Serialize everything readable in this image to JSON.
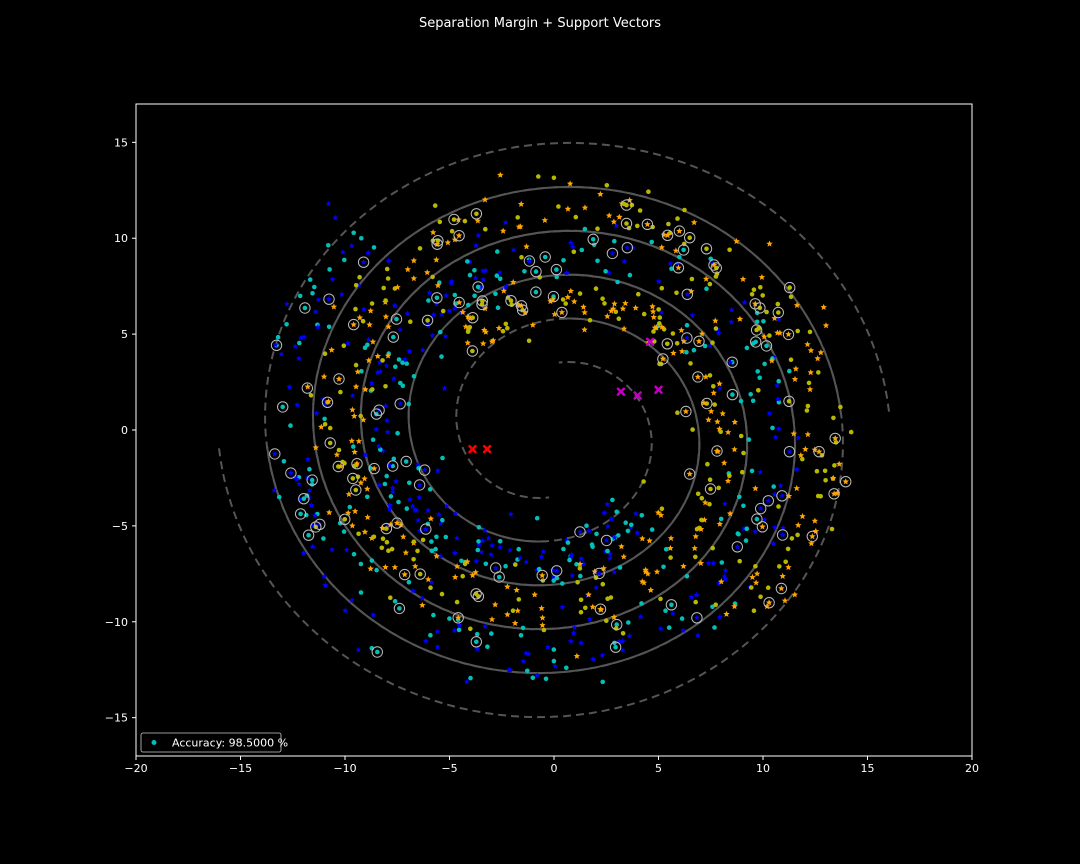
{
  "chart_data": {
    "type": "scatter",
    "title": "Separation Margin + Support Vectors",
    "xlabel": "",
    "ylabel": "",
    "xlim": [
      -20,
      20
    ],
    "ylim": [
      -17,
      17
    ],
    "xticks": [
      -20,
      -15,
      -10,
      -5,
      0,
      5,
      10,
      15,
      20
    ],
    "yticks": [
      -15,
      -10,
      -5,
      0,
      5,
      10,
      15
    ],
    "xtick_labels": [
      "−20",
      "−15",
      "−10",
      "−5",
      "0",
      "5",
      "10",
      "15",
      "20"
    ],
    "ytick_labels": [
      "−15",
      "−10",
      "−5",
      "0",
      "5",
      "10",
      "15"
    ],
    "grid": false,
    "background": "#000000",
    "legend": {
      "position": "lower-left",
      "entries": [
        {
          "label": "Accuracy: 98.5000 %",
          "marker": "dot",
          "color": "#00c0b8"
        }
      ]
    },
    "colors": {
      "class_a_train": "#0000ff",
      "class_a_test": "#00c0b8",
      "class_b_train": "#ffa500",
      "class_b_test": "#b8b800",
      "misclassified_a": "#ff0000",
      "misclassified_b": "#c000c0",
      "support_vector_ring": "#bbbbbb",
      "decision_boundary": "#555555",
      "margin_lines": "#555555"
    },
    "spiral_model": {
      "class_a": {
        "r0": 13.1,
        "angle_at_r0_deg": 145,
        "r1": 6.6,
        "angle_at_r1_deg": -65,
        "reverse_tail": 1.5
      },
      "class_b": {
        "r0": 13.1,
        "angle_at_r0_deg": -35,
        "r1": 6.6,
        "angle_at_r1_deg": 115,
        "reverse_tail": 1.5
      },
      "points_per_class": 520,
      "spread": 0.55
    },
    "boundary_model": {
      "r0": 13.1,
      "angle_at_r0_deg": 55,
      "r1": 6.6,
      "angle_at_r1_deg": -155,
      "margin_offset": 2.3
    },
    "support_vector_fraction": 0.13,
    "misclassified_points": [
      {
        "x": -3.9,
        "y": -1.0,
        "class": "a"
      },
      {
        "x": -3.2,
        "y": -1.0,
        "class": "a"
      },
      {
        "x": 4.6,
        "y": 4.6,
        "class": "b"
      },
      {
        "x": 3.2,
        "y": 2.0,
        "class": "b"
      },
      {
        "x": 4.0,
        "y": 1.8,
        "class": "b"
      },
      {
        "x": 5.0,
        "y": 2.1,
        "class": "b"
      }
    ]
  }
}
